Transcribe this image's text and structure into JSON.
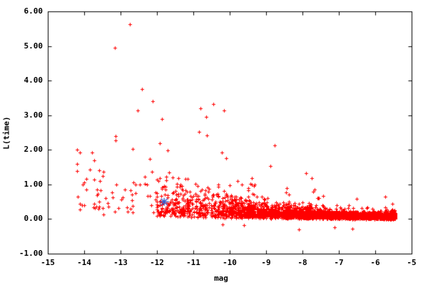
{
  "chart_data": {
    "type": "scatter",
    "title": "",
    "xlabel": "mag",
    "ylabel": "L(time)",
    "xlim": [
      -15,
      -5
    ],
    "ylim": [
      -1,
      6
    ],
    "x_ticks": [
      -15,
      -14,
      -13,
      -12,
      -11,
      -10,
      -9,
      -8,
      -7,
      -6,
      -5
    ],
    "x_tick_labels": [
      "-15",
      "-14",
      "-13",
      "-12",
      "-11",
      "-10",
      "-9",
      "-8",
      "-7",
      "-6",
      "-5"
    ],
    "y_ticks": [
      -1,
      0,
      1,
      2,
      3,
      4,
      5,
      6
    ],
    "y_tick_labels": [
      "-1.00",
      "0.00",
      "1.00",
      "2.00",
      "3.00",
      "4.00",
      "5.00",
      "6.00"
    ],
    "grid": false,
    "frame": true,
    "legend": "none",
    "marker": {
      "shape": "plus",
      "size": 5,
      "color": "#ff0000"
    },
    "special_point": {
      "x": -11.8,
      "y": 0.5,
      "shape": "asterisk",
      "size": 13,
      "color": "#3a5fcd"
    },
    "upper_points": [
      [
        -12.74,
        5.63
      ],
      [
        -13.16,
        4.96
      ],
      [
        -12.41,
        3.75
      ],
      [
        -12.12,
        3.4
      ],
      [
        -12.52,
        3.13
      ],
      [
        -11.86,
        2.9
      ],
      [
        -10.8,
        3.19
      ],
      [
        -10.46,
        3.33
      ],
      [
        -10.15,
        3.14
      ],
      [
        -10.65,
        2.95
      ],
      [
        -13.14,
        2.4
      ],
      [
        -10.84,
        2.53
      ],
      [
        -10.63,
        2.42
      ],
      [
        -11.7,
        1.98
      ],
      [
        -10.21,
        1.92
      ],
      [
        -13.85,
        1.42
      ],
      [
        -8.76,
        2.13
      ],
      [
        -8.89,
        1.53
      ],
      [
        -7.91,
        1.33
      ],
      [
        -9.39,
        1.18
      ],
      [
        -7.74,
        1.18
      ]
    ],
    "lower_points": [
      [
        -8.09,
        -0.3
      ],
      [
        -7.11,
        -0.24
      ],
      [
        -6.62,
        -0.27
      ],
      [
        -9.6,
        -0.18
      ],
      [
        -10.2,
        -0.15
      ]
    ],
    "cloud": {
      "description": "dense red scatter: ~3600 points, pinned near L=0 at faint mags, fanning upward toward bright mags",
      "seed": 1337,
      "n_points": 3600,
      "mag_faint": -5.45,
      "mag_bright": -14.2,
      "components": [
        {
          "weight": 0.86,
          "t_min": 0.0,
          "t_max": 0.52,
          "skew": 1.7
        },
        {
          "weight": 0.12,
          "t_min": 0.52,
          "t_max": 0.75,
          "skew": 1.0
        },
        {
          "weight": 0.02,
          "t_min": 0.75,
          "t_max": 1.0,
          "skew": 1.0
        }
      ],
      "floor": {
        "base": 0.02,
        "amp": 0.1,
        "pow": 2.0
      },
      "sigma": {
        "base": 0.065,
        "amp": 0.8,
        "pow": 1.9
      },
      "tail_prob": 0.045,
      "tail_scale": 1.6,
      "l_cap": 2.3,
      "jitter": 0.06
    }
  },
  "colors": {
    "background": "#ffffff",
    "frame": "#000000",
    "text": "#000000",
    "points": "#ff0000",
    "special": "#3a5fcd"
  }
}
